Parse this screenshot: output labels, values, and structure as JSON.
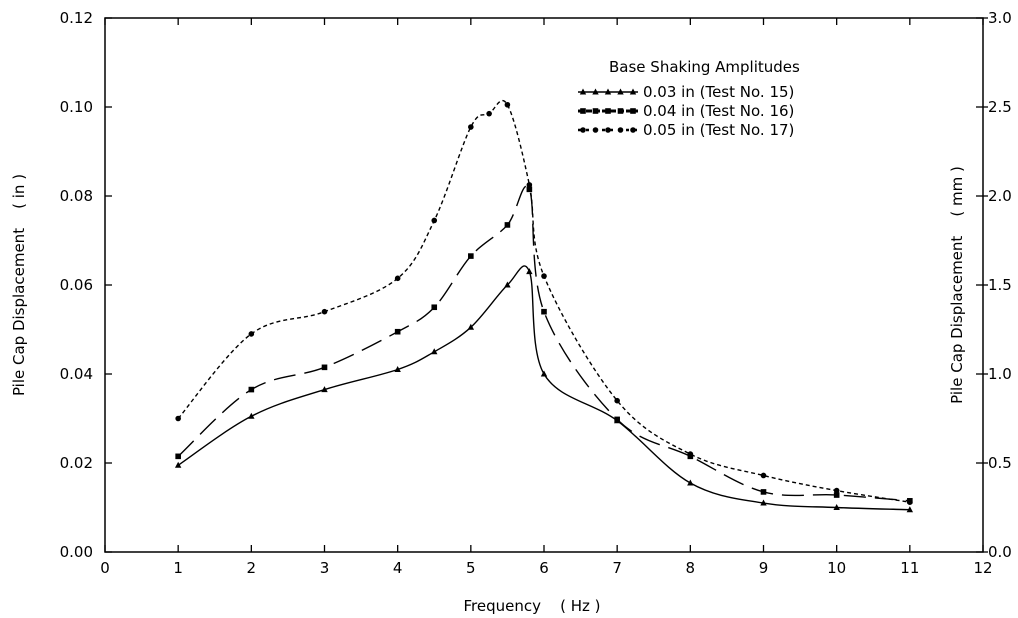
{
  "chart_data": {
    "type": "line",
    "title": "",
    "xlabel": "Frequency    ( Hz )",
    "ylabel": "Pile Cap Displacement    ( in )",
    "y2label": "Pile Cap Displacement    ( mm )",
    "xlim": [
      0,
      12
    ],
    "ylim": [
      0,
      0.12
    ],
    "y2lim": [
      0,
      3.0
    ],
    "xticks": [
      "0",
      "1",
      "2",
      "3",
      "4",
      "5",
      "6",
      "7",
      "8",
      "9",
      "10",
      "11",
      "12"
    ],
    "yticks": [
      "0.00",
      "0.02",
      "0.04",
      "0.06",
      "0.08",
      "0.10",
      "0.12"
    ],
    "y2ticks": [
      "0.0",
      "0.5",
      "1.0",
      "1.5",
      "2.0",
      "2.5",
      "3.0"
    ],
    "grid": false,
    "legend": {
      "title": "Base Shaking Amplitudes",
      "position": "top-right",
      "entries": [
        "0.03  in  (Test  No.  15)",
        "0.04  in  (Test  No.  16)",
        "0.05  in  (Test  No.  17)"
      ]
    },
    "series": [
      {
        "name": "0.03  in  (Test  No.  15)",
        "line_style": "solid",
        "marker": "triangle",
        "x": [
          1,
          2,
          3,
          4,
          4.5,
          5,
          5.5,
          5.8,
          6,
          7,
          8,
          9,
          10,
          11
        ],
        "y": [
          0.0195,
          0.0305,
          0.0365,
          0.041,
          0.045,
          0.0505,
          0.06,
          0.063,
          0.04,
          0.0295,
          0.0155,
          0.011,
          0.01,
          0.0095
        ]
      },
      {
        "name": "0.04  in  (Test  No.  16)",
        "line_style": "dashed",
        "marker": "square",
        "x": [
          1,
          2,
          3,
          4,
          4.5,
          5,
          5.5,
          5.8,
          6,
          7,
          8,
          9,
          10,
          11
        ],
        "y": [
          0.0215,
          0.0365,
          0.0415,
          0.0495,
          0.055,
          0.0665,
          0.0735,
          0.0815,
          0.054,
          0.0298,
          0.0215,
          0.0135,
          0.0128,
          0.0115
        ]
      },
      {
        "name": "0.05  in  (Test  No.  17)",
        "line_style": "dotted",
        "marker": "circle",
        "x": [
          1,
          2,
          3,
          4,
          4.5,
          5,
          5.25,
          5.5,
          5.8,
          6,
          7,
          8,
          9,
          10,
          11
        ],
        "y": [
          0.03,
          0.049,
          0.054,
          0.0615,
          0.0745,
          0.0955,
          0.0985,
          0.1005,
          0.0825,
          0.062,
          0.034,
          0.022,
          0.0172,
          0.0138,
          0.0112
        ]
      }
    ]
  }
}
